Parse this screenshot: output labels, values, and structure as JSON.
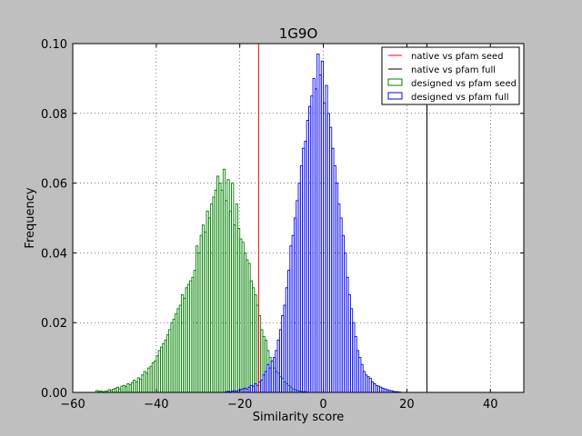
{
  "chart_data": {
    "type": "histogram",
    "title": "1G9O",
    "xlabel": "Similarity score",
    "ylabel": "Frequency",
    "xlim": [
      -60,
      48
    ],
    "ylim": [
      0,
      0.1
    ],
    "xticks": [
      -60,
      -40,
      -20,
      0,
      20,
      40
    ],
    "xtick_labels": [
      "−60",
      "−40",
      "−20",
      "0",
      "20",
      "40"
    ],
    "yticks": [
      0,
      0.02,
      0.04,
      0.06,
      0.08,
      0.1
    ],
    "ytick_labels": [
      "0.00",
      "0.02",
      "0.04",
      "0.06",
      "0.08",
      "0.10"
    ],
    "grid": true,
    "legend_position": "top-right",
    "lines": [
      {
        "name": "native vs pfam seed",
        "color": "#ff0000",
        "x": -15.5
      },
      {
        "name": "native vs pfam full",
        "color": "#000000",
        "x": 24.8
      }
    ],
    "series": [
      {
        "name": "designed vs pfam seed",
        "color": "#008000",
        "bin_width": 0.5,
        "x": [
          -54.5,
          -54,
          -53.5,
          -53,
          -52.5,
          -52,
          -51.5,
          -51,
          -50.5,
          -50,
          -49.5,
          -49,
          -48.5,
          -48,
          -47.5,
          -47,
          -46.5,
          -46,
          -45.5,
          -45,
          -44.5,
          -44,
          -43.5,
          -43,
          -42.5,
          -42,
          -41.5,
          -41,
          -40.5,
          -40,
          -39.5,
          -39,
          -38.5,
          -38,
          -37.5,
          -37,
          -36.5,
          -36,
          -35.5,
          -35,
          -34.5,
          -34,
          -33.5,
          -33,
          -32.5,
          -32,
          -31.5,
          -31,
          -30.5,
          -30,
          -29.5,
          -29,
          -28.5,
          -28,
          -27.5,
          -27,
          -26.5,
          -26,
          -25.5,
          -25,
          -24.5,
          -24,
          -23.5,
          -23,
          -22.5,
          -22,
          -21.5,
          -21,
          -20.5,
          -20,
          -19.5,
          -19,
          -18.5,
          -18,
          -17.5,
          -17,
          -16.5,
          -16,
          -15.5,
          -15,
          -14.5,
          -14,
          -13.5,
          -13,
          -12.5,
          -12,
          -11.5,
          -11,
          -10.5,
          -10,
          -9.5,
          -9,
          -8.5,
          -8,
          -7.5,
          -7,
          -6.5,
          -6,
          -5.5,
          -5,
          -4.5,
          -4
        ],
        "values": [
          0.0005,
          0.0003,
          0.0004,
          0.0002,
          0.0003,
          0.0004,
          0.0008,
          0.0006,
          0.0009,
          0.0012,
          0.0015,
          0.001,
          0.0018,
          0.002,
          0.0017,
          0.0025,
          0.0022,
          0.0028,
          0.0035,
          0.003,
          0.0042,
          0.0038,
          0.005,
          0.006,
          0.0055,
          0.007,
          0.0075,
          0.0085,
          0.009,
          0.0105,
          0.012,
          0.013,
          0.014,
          0.015,
          0.0165,
          0.018,
          0.02,
          0.021,
          0.0225,
          0.024,
          0.025,
          0.028,
          0.027,
          0.03,
          0.031,
          0.032,
          0.033,
          0.035,
          0.042,
          0.04,
          0.045,
          0.048,
          0.046,
          0.052,
          0.05,
          0.054,
          0.056,
          0.058,
          0.062,
          0.06,
          0.058,
          0.064,
          0.055,
          0.061,
          0.052,
          0.06,
          0.048,
          0.054,
          0.047,
          0.044,
          0.043,
          0.04,
          0.038,
          0.037,
          0.032,
          0.03,
          0.028,
          0.025,
          0.022,
          0.018,
          0.016,
          0.015,
          0.012,
          0.01,
          0.009,
          0.007,
          0.006,
          0.0055,
          0.0045,
          0.004,
          0.003,
          0.0025,
          0.002,
          0.0015,
          0.001,
          0.0008,
          0.0006,
          0.0004,
          0.0003,
          0.0002,
          0.0002,
          0.0001
        ]
      },
      {
        "name": "designed vs pfam full",
        "color": "#0000ff",
        "bin_width": 0.5,
        "x": [
          -23.5,
          -23,
          -22.5,
          -22,
          -21.5,
          -21,
          -20.5,
          -20,
          -19.5,
          -19,
          -18.5,
          -18,
          -17.5,
          -17,
          -16.5,
          -16,
          -15.5,
          -15,
          -14.5,
          -14,
          -13.5,
          -13,
          -12.5,
          -12,
          -11.5,
          -11,
          -10.5,
          -10,
          -9.5,
          -9,
          -8.5,
          -8,
          -7.5,
          -7,
          -6.5,
          -6,
          -5.5,
          -5,
          -4.5,
          -4,
          -3.5,
          -3,
          -2.5,
          -2,
          -1.5,
          -1,
          -0.5,
          0,
          0.5,
          1,
          1.5,
          2,
          2.5,
          3,
          3.5,
          4,
          4.5,
          5,
          5.5,
          6,
          6.5,
          7,
          7.5,
          8,
          8.5,
          9,
          9.5,
          10,
          10.5,
          11,
          11.5,
          12,
          12.5,
          13,
          13.5,
          14,
          14.5,
          15,
          15.5,
          16,
          16.5,
          17,
          17.5,
          18
        ],
        "values": [
          0.0002,
          0.0003,
          0.0002,
          0.0004,
          0.0005,
          0.0003,
          0.0006,
          0.0008,
          0.001,
          0.0012,
          0.001,
          0.0015,
          0.002,
          0.0018,
          0.0025,
          0.002,
          0.003,
          0.0035,
          0.005,
          0.006,
          0.008,
          0.007,
          0.009,
          0.01,
          0.012,
          0.015,
          0.018,
          0.022,
          0.025,
          0.03,
          0.035,
          0.042,
          0.045,
          0.05,
          0.055,
          0.06,
          0.065,
          0.07,
          0.072,
          0.078,
          0.082,
          0.085,
          0.09,
          0.087,
          0.097,
          0.091,
          0.095,
          0.083,
          0.088,
          0.08,
          0.076,
          0.07,
          0.065,
          0.06,
          0.054,
          0.05,
          0.045,
          0.04,
          0.033,
          0.028,
          0.024,
          0.02,
          0.016,
          0.012,
          0.01,
          0.008,
          0.006,
          0.005,
          0.0045,
          0.004,
          0.003,
          0.0025,
          0.002,
          0.0018,
          0.0015,
          0.0012,
          0.001,
          0.0008,
          0.0006,
          0.0005,
          0.0003,
          0.0002,
          0.0002,
          0.0001
        ]
      }
    ]
  }
}
